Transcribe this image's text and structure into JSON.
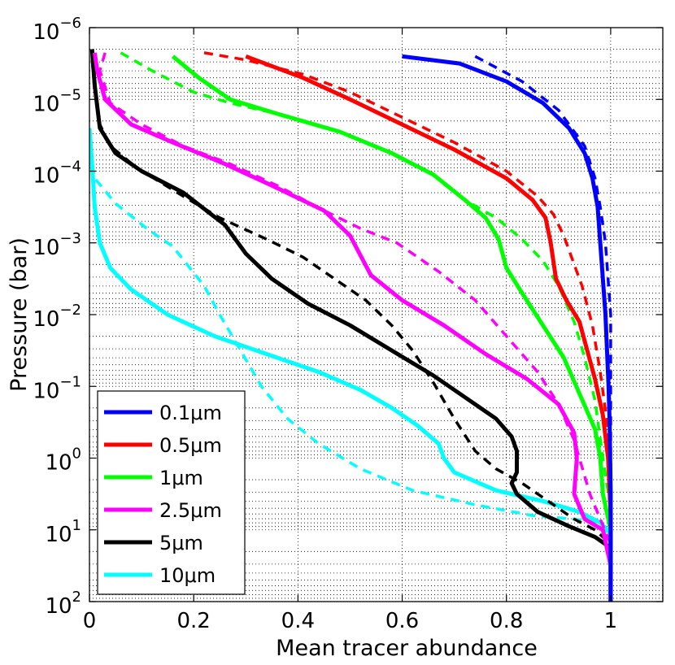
{
  "chart_data": {
    "type": "line",
    "xlabel": "Mean tracer abundance",
    "ylabel": "Pressure (bar)",
    "xlim": [
      0,
      1.1
    ],
    "ylim_log10": [
      -6,
      2
    ],
    "y_scale": "log",
    "y_inverted": true,
    "grid": true,
    "legend_position": "lower-left",
    "x_ticks": [
      {
        "value": 0,
        "label": "0"
      },
      {
        "value": 0.2,
        "label": "0.2"
      },
      {
        "value": 0.4,
        "label": "0.4"
      },
      {
        "value": 0.6,
        "label": "0.6"
      },
      {
        "value": 0.8,
        "label": "0.8"
      },
      {
        "value": 1,
        "label": "1"
      }
    ],
    "y_ticks": [
      {
        "exp": -6,
        "base": "10",
        "sup": "−6"
      },
      {
        "exp": -5,
        "base": "10",
        "sup": "−5"
      },
      {
        "exp": -4,
        "base": "10",
        "sup": "−4"
      },
      {
        "exp": -3,
        "base": "10",
        "sup": "−3"
      },
      {
        "exp": -2,
        "base": "10",
        "sup": "−2"
      },
      {
        "exp": -1,
        "base": "10",
        "sup": "−1"
      },
      {
        "exp": 0,
        "base": "10",
        "sup": "0"
      },
      {
        "exp": 1,
        "base": "10",
        "sup": "1"
      },
      {
        "exp": 2,
        "base": "10",
        "sup": "2"
      }
    ],
    "series": [
      {
        "name": "0.1μm",
        "color": "#0000ff",
        "solid": [
          [
            0.6,
            -5.6
          ],
          [
            0.71,
            -5.5
          ],
          [
            0.8,
            -5.25
          ],
          [
            0.87,
            -4.95
          ],
          [
            0.92,
            -4.6
          ],
          [
            0.95,
            -4.25
          ],
          [
            0.965,
            -3.9
          ],
          [
            0.975,
            -3.5
          ],
          [
            0.98,
            -3
          ],
          [
            0.985,
            -2.5
          ],
          [
            0.99,
            -2
          ],
          [
            0.993,
            -1.5
          ],
          [
            0.996,
            -1
          ],
          [
            0.998,
            -0.5
          ],
          [
            1,
            0.5
          ],
          [
            1,
            2
          ]
        ],
        "dashed": [
          [
            0.74,
            -5.6
          ],
          [
            0.83,
            -5.25
          ],
          [
            0.9,
            -4.85
          ],
          [
            0.95,
            -4.35
          ],
          [
            0.97,
            -3.9
          ],
          [
            0.98,
            -3.5
          ],
          [
            0.99,
            -3
          ],
          [
            0.995,
            -2.5
          ],
          [
            1,
            -2
          ],
          [
            1,
            2
          ]
        ]
      },
      {
        "name": "0.5μm",
        "color": "#ff0000",
        "solid": [
          [
            0.3,
            -5.6
          ],
          [
            0.41,
            -5.3
          ],
          [
            0.5,
            -5
          ],
          [
            0.6,
            -4.65
          ],
          [
            0.7,
            -4.3
          ],
          [
            0.8,
            -3.9
          ],
          [
            0.85,
            -3.6
          ],
          [
            0.875,
            -3.35
          ],
          [
            0.885,
            -3
          ],
          [
            0.895,
            -2.5
          ],
          [
            0.915,
            -2.2
          ],
          [
            0.94,
            -1.9
          ],
          [
            0.955,
            -1.5
          ],
          [
            0.97,
            -1.1
          ],
          [
            0.985,
            -0.6
          ],
          [
            0.995,
            0
          ],
          [
            1,
            0.8
          ],
          [
            1,
            2
          ]
        ],
        "dashed": [
          [
            0.22,
            -5.65
          ],
          [
            0.3,
            -5.55
          ],
          [
            0.41,
            -5.35
          ],
          [
            0.5,
            -5.1
          ],
          [
            0.6,
            -4.75
          ],
          [
            0.7,
            -4.4
          ],
          [
            0.8,
            -4
          ],
          [
            0.86,
            -3.65
          ],
          [
            0.89,
            -3.4
          ],
          [
            0.91,
            -3.1
          ],
          [
            0.925,
            -2.8
          ],
          [
            0.945,
            -2.4
          ],
          [
            0.965,
            -1.85
          ],
          [
            0.98,
            -1.2
          ],
          [
            0.995,
            -0.4
          ],
          [
            1,
            0.5
          ],
          [
            1,
            2
          ]
        ]
      },
      {
        "name": "1μm",
        "color": "#00ff00",
        "solid": [
          [
            0.16,
            -5.6
          ],
          [
            0.21,
            -5.3
          ],
          [
            0.27,
            -5
          ],
          [
            0.36,
            -4.8
          ],
          [
            0.48,
            -4.55
          ],
          [
            0.58,
            -4.25
          ],
          [
            0.66,
            -3.95
          ],
          [
            0.72,
            -3.6
          ],
          [
            0.76,
            -3.35
          ],
          [
            0.785,
            -3.05
          ],
          [
            0.8,
            -2.65
          ],
          [
            0.83,
            -2.3
          ],
          [
            0.87,
            -1.85
          ],
          [
            0.91,
            -1.4
          ],
          [
            0.94,
            -0.9
          ],
          [
            0.97,
            -0.4
          ],
          [
            0.98,
            0
          ],
          [
            0.985,
            0.5
          ],
          [
            1,
            1
          ],
          [
            1,
            2
          ]
        ],
        "dashed": [
          [
            0.06,
            -5.65
          ],
          [
            0.12,
            -5.4
          ],
          [
            0.2,
            -5.1
          ],
          [
            0.27,
            -4.95
          ],
          [
            0.36,
            -4.8
          ],
          [
            0.48,
            -4.55
          ],
          [
            0.58,
            -4.25
          ],
          [
            0.66,
            -3.95
          ],
          [
            0.72,
            -3.6
          ],
          [
            0.78,
            -3.35
          ],
          [
            0.83,
            -3.05
          ],
          [
            0.87,
            -2.75
          ],
          [
            0.9,
            -2.4
          ],
          [
            0.93,
            -1.9
          ],
          [
            0.95,
            -1.4
          ],
          [
            0.97,
            -0.8
          ],
          [
            0.985,
            0
          ],
          [
            1,
            0.7
          ],
          [
            1,
            2
          ]
        ]
      },
      {
        "name": "2.5μm",
        "color": "#ff00ff",
        "solid": [
          [
            0.01,
            -5.65
          ],
          [
            0.015,
            -5.4
          ],
          [
            0.03,
            -5
          ],
          [
            0.08,
            -4.65
          ],
          [
            0.16,
            -4.4
          ],
          [
            0.26,
            -4.1
          ],
          [
            0.35,
            -3.8
          ],
          [
            0.45,
            -3.45
          ],
          [
            0.5,
            -3.1
          ],
          [
            0.54,
            -2.55
          ],
          [
            0.6,
            -2.2
          ],
          [
            0.68,
            -1.85
          ],
          [
            0.76,
            -1.45
          ],
          [
            0.84,
            -1.1
          ],
          [
            0.9,
            -0.75
          ],
          [
            0.93,
            -0.35
          ],
          [
            0.935,
            0
          ],
          [
            0.93,
            0.5
          ],
          [
            0.95,
            0.85
          ],
          [
            0.985,
            1
          ],
          [
            1,
            1.5
          ],
          [
            1,
            2
          ]
        ],
        "dashed": [
          [
            0.03,
            -5.65
          ],
          [
            0.02,
            -5.4
          ],
          [
            0.04,
            -4.95
          ],
          [
            0.1,
            -4.65
          ],
          [
            0.18,
            -4.35
          ],
          [
            0.27,
            -4.1
          ],
          [
            0.36,
            -3.8
          ],
          [
            0.45,
            -3.45
          ],
          [
            0.52,
            -3.2
          ],
          [
            0.59,
            -3
          ],
          [
            0.67,
            -2.6
          ],
          [
            0.74,
            -2.2
          ],
          [
            0.8,
            -1.7
          ],
          [
            0.86,
            -1.2
          ],
          [
            0.9,
            -0.75
          ],
          [
            0.93,
            -0.25
          ],
          [
            0.96,
            0.5
          ],
          [
            1,
            1.2
          ],
          [
            1,
            2
          ]
        ]
      },
      {
        "name": "5μm",
        "color": "#000000",
        "solid": [
          [
            0.005,
            -5.7
          ],
          [
            0.01,
            -5.2
          ],
          [
            0.02,
            -4.6
          ],
          [
            0.05,
            -4.25
          ],
          [
            0.1,
            -4
          ],
          [
            0.18,
            -3.7
          ],
          [
            0.26,
            -3.25
          ],
          [
            0.3,
            -2.85
          ],
          [
            0.35,
            -2.5
          ],
          [
            0.42,
            -2.15
          ],
          [
            0.5,
            -1.85
          ],
          [
            0.58,
            -1.5
          ],
          [
            0.66,
            -1.15
          ],
          [
            0.72,
            -0.85
          ],
          [
            0.78,
            -0.55
          ],
          [
            0.81,
            -0.3
          ],
          [
            0.82,
            -0.1
          ],
          [
            0.82,
            0.2
          ],
          [
            0.81,
            0.35
          ],
          [
            0.82,
            0.5
          ],
          [
            0.86,
            0.75
          ],
          [
            0.92,
            0.95
          ],
          [
            0.97,
            1.1
          ],
          [
            1,
            1.25
          ],
          [
            1,
            2
          ]
        ],
        "dashed": [
          [
            0.005,
            -5.55
          ],
          [
            0.01,
            -5.15
          ],
          [
            0.02,
            -4.65
          ],
          [
            0.04,
            -4.35
          ],
          [
            0.09,
            -4.05
          ],
          [
            0.18,
            -3.65
          ],
          [
            0.25,
            -3.35
          ],
          [
            0.34,
            -3.05
          ],
          [
            0.41,
            -2.8
          ],
          [
            0.47,
            -2.5
          ],
          [
            0.53,
            -2.2
          ],
          [
            0.58,
            -1.85
          ],
          [
            0.62,
            -1.5
          ],
          [
            0.66,
            -1.05
          ],
          [
            0.7,
            -0.55
          ],
          [
            0.74,
            -0.1
          ],
          [
            0.78,
            0.15
          ],
          [
            0.83,
            0.35
          ],
          [
            0.88,
            0.6
          ],
          [
            0.93,
            0.85
          ],
          [
            0.97,
            1
          ],
          [
            1,
            1.2
          ],
          [
            1,
            2
          ]
        ]
      },
      {
        "name": "10μm",
        "color": "#00ffff",
        "solid": [
          [
            0,
            -4.6
          ],
          [
            0.005,
            -4.1
          ],
          [
            0.01,
            -3.5
          ],
          [
            0.02,
            -3
          ],
          [
            0.04,
            -2.65
          ],
          [
            0.08,
            -2.35
          ],
          [
            0.15,
            -2
          ],
          [
            0.24,
            -1.7
          ],
          [
            0.34,
            -1.45
          ],
          [
            0.44,
            -1.2
          ],
          [
            0.52,
            -0.95
          ],
          [
            0.58,
            -0.7
          ],
          [
            0.63,
            -0.45
          ],
          [
            0.67,
            -0.2
          ],
          [
            0.68,
            0
          ],
          [
            0.7,
            0.2
          ],
          [
            0.78,
            0.45
          ],
          [
            0.87,
            0.6
          ],
          [
            0.94,
            0.75
          ],
          [
            0.98,
            0.9
          ],
          [
            1,
            1.05
          ],
          [
            1,
            2
          ]
        ],
        "dashed": [
          [
            0,
            -4.3
          ],
          [
            0.01,
            -3.9
          ],
          [
            0.05,
            -3.55
          ],
          [
            0.11,
            -3.2
          ],
          [
            0.16,
            -2.95
          ],
          [
            0.22,
            -2.4
          ],
          [
            0.25,
            -2
          ],
          [
            0.29,
            -1.5
          ],
          [
            0.33,
            -1
          ],
          [
            0.38,
            -0.55
          ],
          [
            0.44,
            -0.2
          ],
          [
            0.52,
            0.15
          ],
          [
            0.62,
            0.45
          ],
          [
            0.74,
            0.65
          ],
          [
            0.85,
            0.8
          ],
          [
            0.93,
            0.85
          ],
          [
            0.98,
            0.9
          ],
          [
            1,
            1.2
          ],
          [
            1,
            2
          ]
        ]
      }
    ]
  }
}
